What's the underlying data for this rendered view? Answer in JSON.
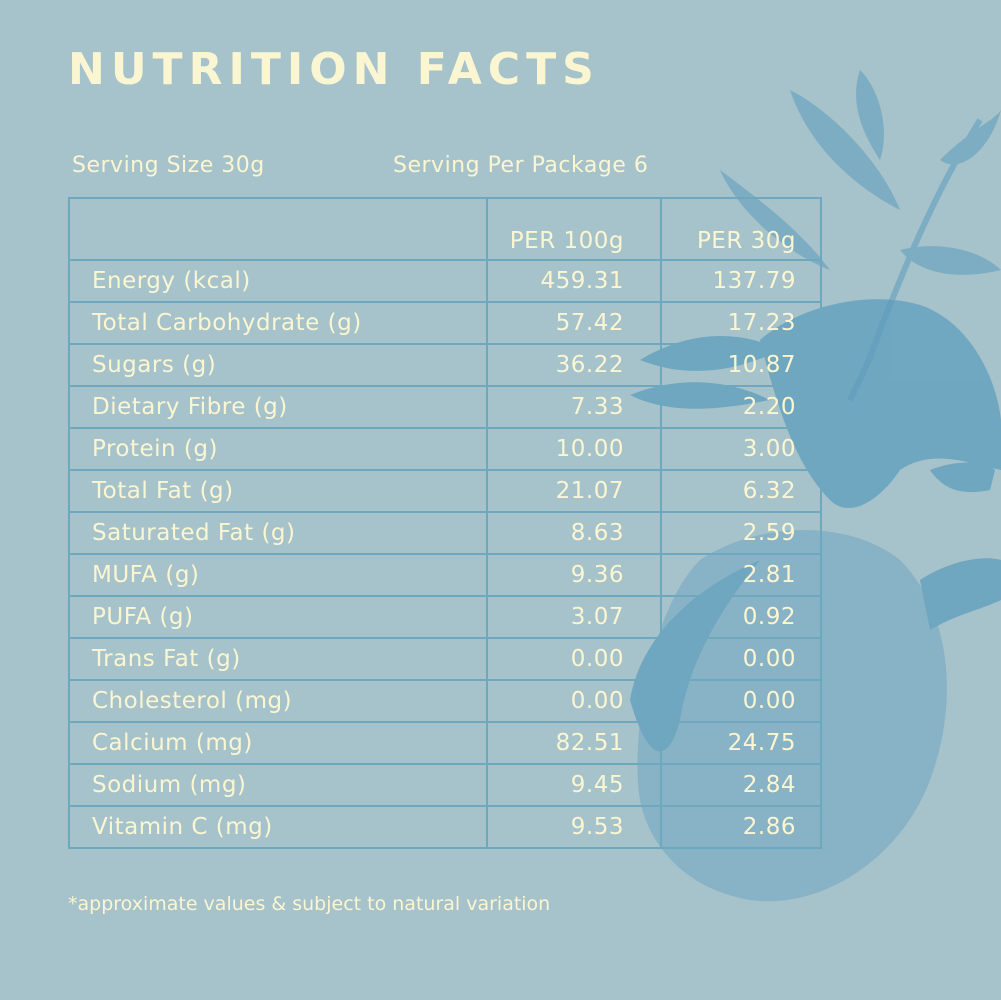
{
  "title": "NUTRITION FACTS",
  "serving_size": "Serving Size 30g",
  "servings_per_package": "Serving Per Package 6",
  "columns": [
    "",
    "PER 100g",
    "PER 30g"
  ],
  "rows": [
    {
      "label": "Energy (kcal)",
      "per100": "459.31",
      "per30": "137.79"
    },
    {
      "label": "Total Carbohydrate (g)",
      "per100": "57.42",
      "per30": "17.23"
    },
    {
      "label": "Sugars (g)",
      "per100": "36.22",
      "per30": "10.87"
    },
    {
      "label": "Dietary Fibre (g)",
      "per100": "7.33",
      "per30": "2.20"
    },
    {
      "label": "Protein (g)",
      "per100": "10.00",
      "per30": "3.00"
    },
    {
      "label": "Total Fat (g)",
      "per100": "21.07",
      "per30": "6.32"
    },
    {
      "label": "Saturated Fat (g)",
      "per100": "8.63",
      "per30": "2.59"
    },
    {
      "label": "MUFA (g)",
      "per100": "9.36",
      "per30": "2.81"
    },
    {
      "label": "PUFA (g)",
      "per100": "3.07",
      "per30": "0.92"
    },
    {
      "label": "Trans Fat (g)",
      "per100": "0.00",
      "per30": "0.00"
    },
    {
      "label": "Cholesterol (mg)",
      "per100": "0.00",
      "per30": "0.00"
    },
    {
      "label": "Calcium (mg)",
      "per100": "82.51",
      "per30": "24.75"
    },
    {
      "label": "Sodium (mg)",
      "per100": "9.45",
      "per30": "2.84"
    },
    {
      "label": "Vitamin C (mg)",
      "per100": "9.53",
      "per30": "2.86"
    }
  ],
  "footnote": "*approximate values & subject to natural variation",
  "colors": {
    "background": "#a6c2ca",
    "text": "#fbf6d2",
    "grid": "#6da8bf",
    "illustration": "#5d9dbd"
  }
}
